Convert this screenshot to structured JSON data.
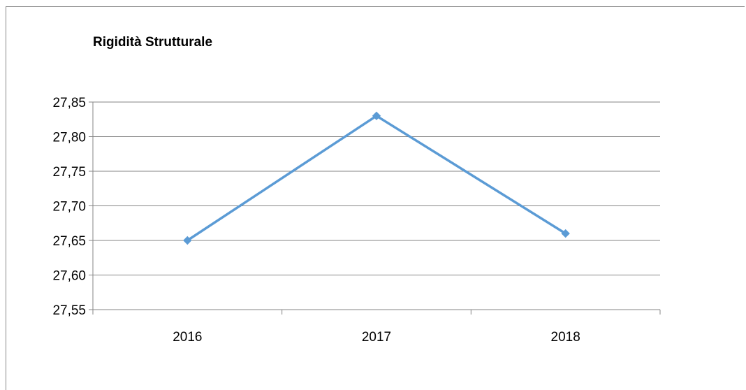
{
  "chart_data": {
    "type": "line",
    "title": "Rigidità Strutturale",
    "categories": [
      "2016",
      "2017",
      "2018"
    ],
    "series": [
      {
        "values": [
          27.65,
          27.83,
          27.66
        ],
        "color": "#5b9bd5",
        "marker": "diamond"
      }
    ],
    "ylim": [
      27.55,
      27.85
    ],
    "yticks": [
      "27,55",
      "27,60",
      "27,65",
      "27,70",
      "27,75",
      "27,80",
      "27,85"
    ],
    "xlabel": "",
    "ylabel": "",
    "grid": true,
    "legend": "none"
  }
}
